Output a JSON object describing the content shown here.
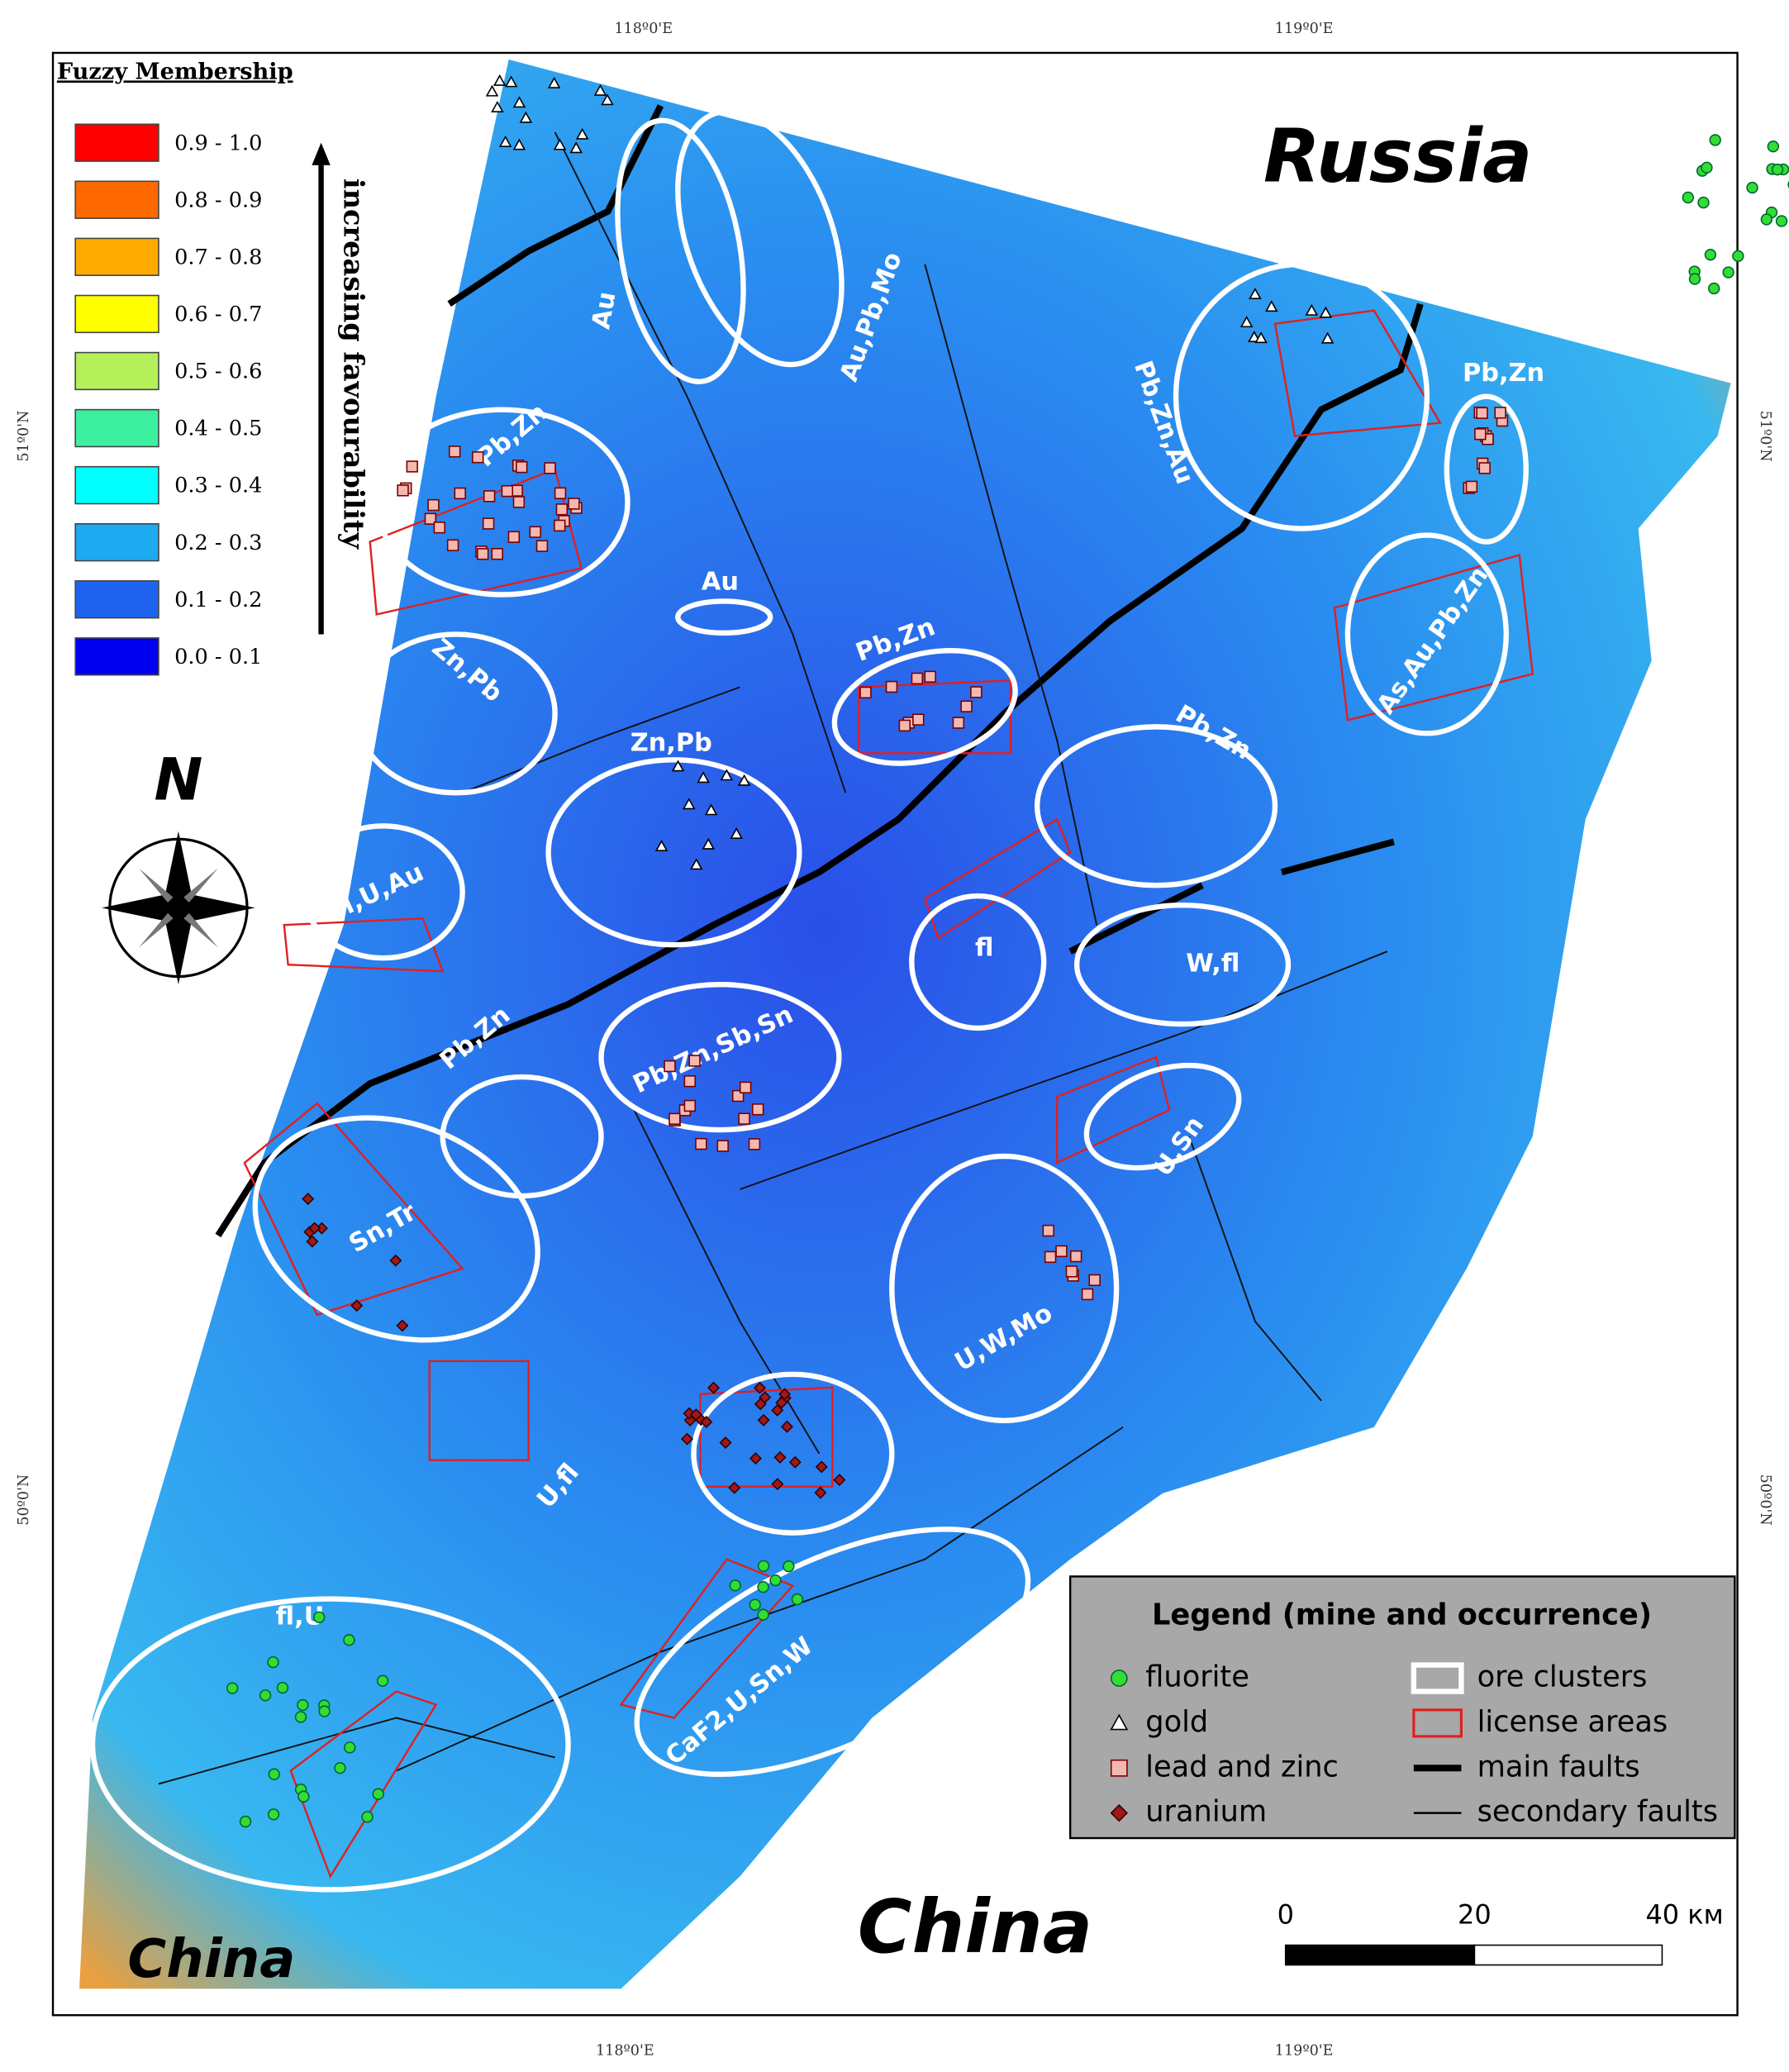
{
  "graticule": {
    "top": [
      "118º0'E",
      "119º0'E"
    ],
    "bottom": [
      "118º0'E",
      "119º0'E"
    ],
    "left": [
      "51º0'N",
      "50º0'N"
    ],
    "right": [
      "51º0'N",
      "50º0'N"
    ]
  },
  "fuzzy_legend": {
    "title": "Fuzzy Membership",
    "arrow_label": "increasing favourability",
    "classes": [
      {
        "label": "0.9 - 1.0",
        "color": "#ff0000"
      },
      {
        "label": "0.8 - 0.9",
        "color": "#ff6a00"
      },
      {
        "label": "0.7 - 0.8",
        "color": "#ffaa00"
      },
      {
        "label": "0.6 - 0.7",
        "color": "#ffff00"
      },
      {
        "label": "0.5 - 0.6",
        "color": "#b4f05a"
      },
      {
        "label": "0.4 - 0.5",
        "color": "#3cf0a0"
      },
      {
        "label": "0.3 - 0.4",
        "color": "#00ffff"
      },
      {
        "label": "0.2 - 0.3",
        "color": "#1eaaf0"
      },
      {
        "label": "0.1 - 0.2",
        "color": "#1e64f0"
      },
      {
        "label": "0.0 - 0.1",
        "color": "#0000f0"
      }
    ]
  },
  "north": "N",
  "countries": [
    "Russia",
    "China",
    "China"
  ],
  "clusters": [
    "Au",
    "Au,Pb,Mo",
    "Pb,Zn,Au",
    "Pb,Zn",
    "Pb,Zn",
    "Au",
    "Pb,Zn",
    "Zn,Pb",
    "Zn,Pb",
    "Pb,Zn",
    "As,Au,Pb,Zn",
    "fl,U,Au",
    "fl",
    "W,fl",
    "Pb,Zn",
    "Pb,Zn,Sb,Sn",
    "U,Sn",
    "Sn,Tr",
    "U,W,Mo",
    "U,fl",
    "fl,U",
    "CaF2,U,Sn,W"
  ],
  "legend": {
    "title": "Legend (mine and occurrence)",
    "items": [
      {
        "label": "fluorite",
        "color": "#33dd33"
      },
      {
        "label": "gold",
        "color": "#ffffff"
      },
      {
        "label": "lead and zinc",
        "color": "#f4b8b0"
      },
      {
        "label": "uranium",
        "color": "#a01818"
      },
      {
        "label": "ore clusters",
        "color": "#ffffff"
      },
      {
        "label": "license areas",
        "color": "#e02020"
      },
      {
        "label": "main faults",
        "color": "#000000"
      },
      {
        "label": "secondary faults",
        "color": "#000000"
      }
    ]
  },
  "scale": {
    "labels": [
      "0",
      "20",
      "40 км"
    ]
  }
}
